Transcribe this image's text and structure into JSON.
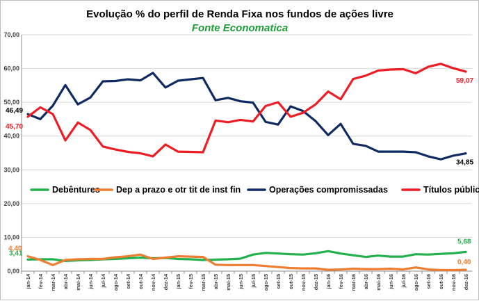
{
  "chart_data": {
    "type": "line",
    "title": "Evolução % do perfil de Renda Fixa nos fundos de ações livre",
    "subtitle": "Fonte Economatica",
    "xlabel": "",
    "ylabel": "",
    "ylim": [
      0,
      70
    ],
    "yticks": [
      "0,00",
      "10,00",
      "20,00",
      "30,00",
      "40,00",
      "50,00",
      "60,00",
      "70,00"
    ],
    "ytick_values": [
      0,
      10,
      20,
      30,
      40,
      50,
      60,
      70
    ],
    "grid": true,
    "legend_position": "middle",
    "categories": [
      "jan-14",
      "fev-14",
      "mar-14",
      "abr-14",
      "mai-14",
      "jun-14",
      "jul-14",
      "ago-14",
      "set-14",
      "out-14",
      "nov-14",
      "dez-14",
      "jan-15",
      "fev-15",
      "mar-15",
      "abr-15",
      "mai-15",
      "jun-15",
      "jul-15",
      "ago-15",
      "set-15",
      "out-15",
      "nov-15",
      "dez-15",
      "jan-16",
      "fev-16",
      "mar-16",
      "abr-16",
      "mai-16",
      "jun-16",
      "jul-16",
      "ago-16",
      "set-16",
      "out-16",
      "nov-16",
      "dez-16"
    ],
    "x_tick_labels": [
      "jan-14",
      "fev-14",
      "mar-14",
      "abr-14",
      "mai-14",
      "jun-14",
      "jul-14",
      "ago-14",
      "set-14",
      "out-14",
      "nov-14",
      "dez-14",
      "jan-15",
      "fev-15",
      "mar-15",
      "abr-15",
      "mai-15",
      "jun-15",
      "jul-15",
      "ago-15",
      "set-15",
      "out-15",
      "nov-15",
      "dez-15",
      "jan-16",
      "fev-16",
      "mar-16",
      "abr-16",
      "mai-16",
      "jun-16",
      "jul-16",
      "ago-16",
      "set-16",
      "out-16",
      "nov-16",
      "dez-16"
    ],
    "series": [
      {
        "name": "Debêntures",
        "color": "#22b14c",
        "values": [
          3.41,
          3.5,
          3.5,
          3.0,
          3.2,
          3.3,
          3.5,
          3.6,
          3.8,
          4.0,
          3.8,
          3.9,
          3.6,
          3.5,
          3.3,
          3.4,
          3.5,
          3.7,
          4.9,
          5.4,
          5.2,
          5.0,
          4.9,
          5.3,
          5.9,
          5.2,
          4.7,
          4.2,
          4.6,
          4.3,
          4.3,
          5.0,
          4.9,
          5.1,
          5.3,
          5.68
        ],
        "start_label": "3,41",
        "end_label": "5,68"
      },
      {
        "name": "Dep a prazo e otr tit de inst fin",
        "color": "#ed7d31",
        "values": [
          4.4,
          3.3,
          1.8,
          3.3,
          3.5,
          3.6,
          3.6,
          4.1,
          4.4,
          4.9,
          3.6,
          4.0,
          4.4,
          4.3,
          4.2,
          1.9,
          1.8,
          1.8,
          1.8,
          1.5,
          1.2,
          0.9,
          0.8,
          0.8,
          0.4,
          0.5,
          0.7,
          0.6,
          0.6,
          0.7,
          0.5,
          1.1,
          0.5,
          0.3,
          0.3,
          0.4
        ],
        "start_label": "4,40",
        "end_label": "0,40"
      },
      {
        "name": "Operações compromissadas",
        "color": "#0f2a63",
        "values": [
          46.49,
          45.0,
          49.0,
          55.1,
          49.4,
          51.4,
          56.2,
          56.3,
          56.8,
          56.5,
          58.7,
          54.4,
          56.4,
          56.8,
          57.2,
          50.6,
          51.3,
          50.3,
          49.9,
          44.2,
          43.4,
          48.8,
          47.4,
          44.4,
          40.3,
          43.6,
          37.7,
          37.1,
          35.4,
          35.4,
          35.4,
          35.2,
          34.0,
          33.1,
          34.2,
          34.85
        ],
        "start_label": "46,49",
        "end_label": "34,85"
      },
      {
        "name": "Títulos públicos",
        "color": "#ee1c24",
        "values": [
          45.7,
          48.5,
          46.5,
          38.7,
          44.0,
          41.8,
          36.9,
          36.0,
          35.3,
          34.9,
          34.0,
          37.5,
          35.4,
          35.3,
          35.2,
          44.6,
          44.1,
          44.8,
          44.3,
          48.9,
          50.0,
          45.7,
          46.9,
          49.4,
          53.2,
          50.9,
          56.9,
          57.9,
          59.4,
          59.7,
          59.8,
          58.6,
          60.5,
          61.4,
          60.1,
          59.07
        ],
        "start_label": "45,70",
        "end_label": "59,07"
      }
    ]
  }
}
